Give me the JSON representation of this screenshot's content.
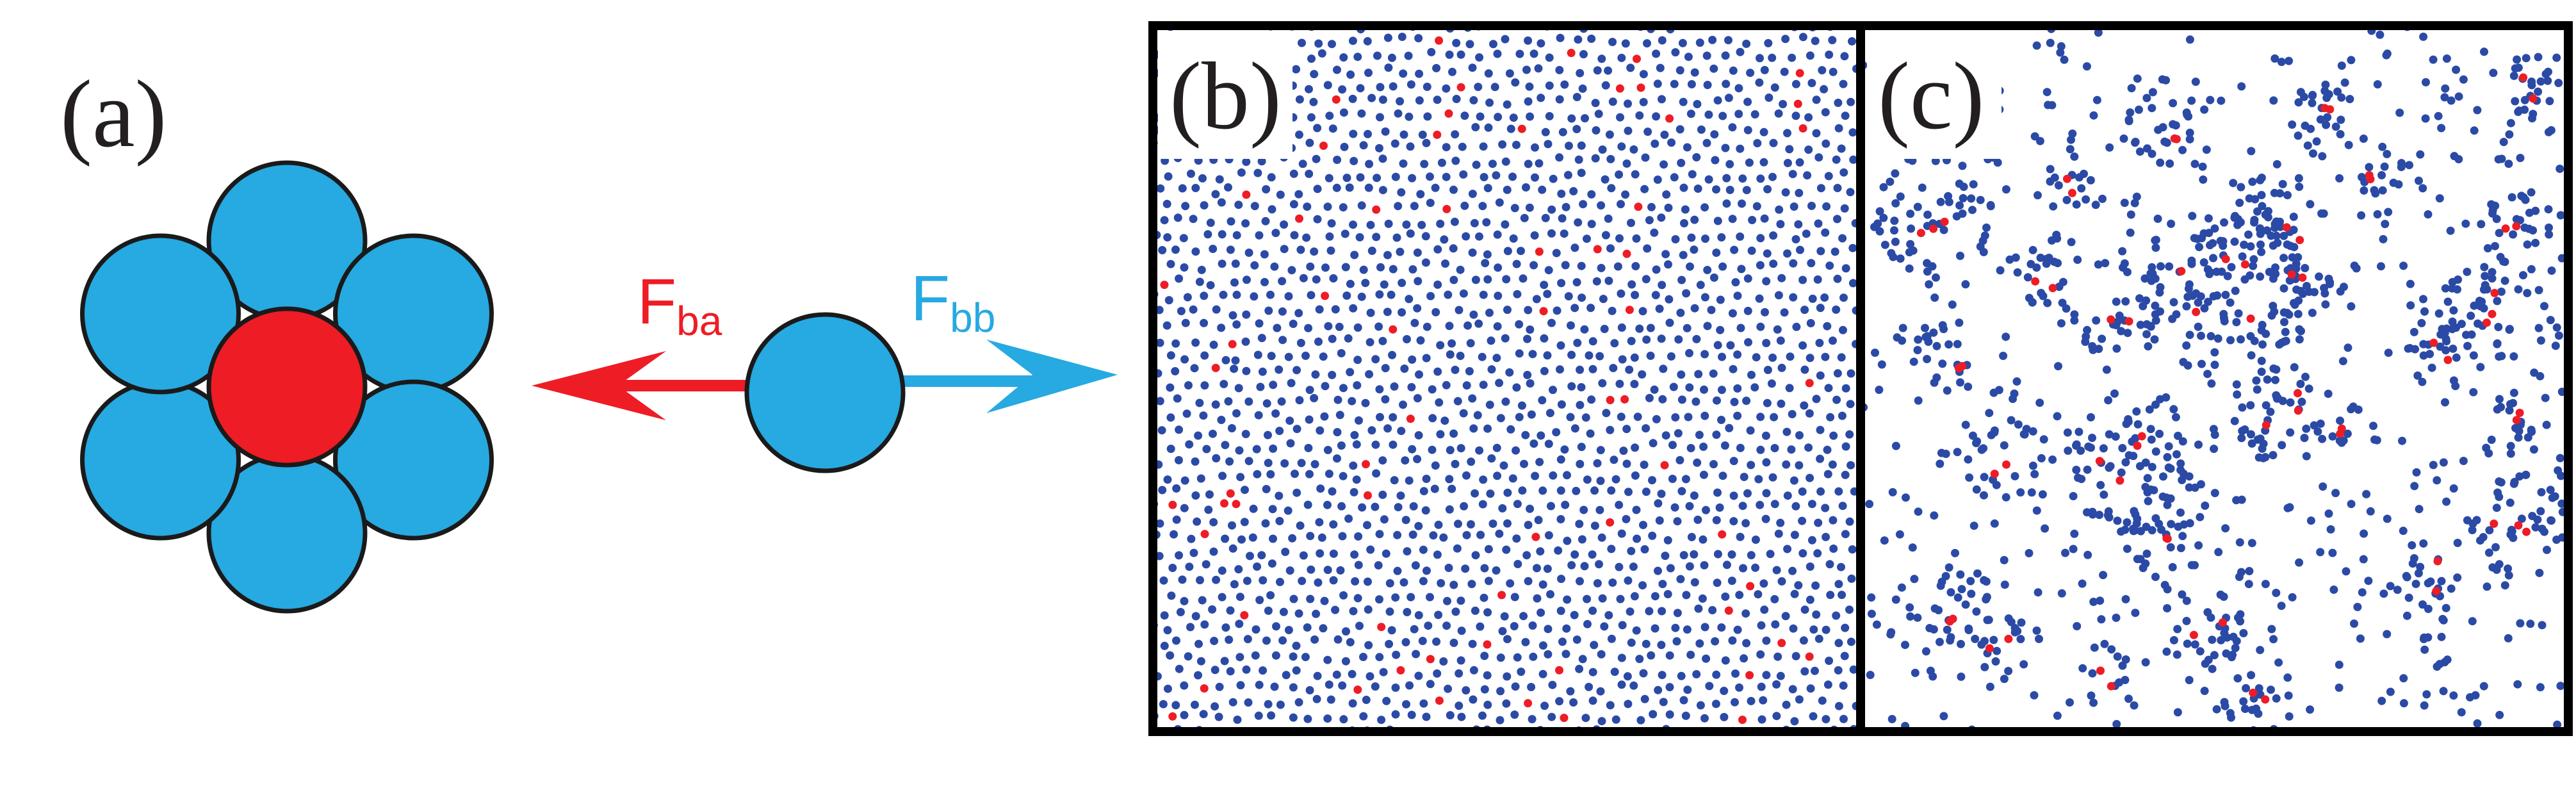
{
  "panels": {
    "a": {
      "label": "(a)"
    },
    "b": {
      "label": "(b)"
    },
    "c": {
      "label": "(c)"
    }
  },
  "cluster": {
    "center_particle": {
      "type": "a",
      "color": "#ee1c25"
    },
    "neighbor_particles": {
      "type": "b",
      "count": 6,
      "color": "#27a9e1"
    },
    "outline_color": "#1a1a1a"
  },
  "forces": {
    "fba": {
      "main": "F",
      "sub": "ba",
      "color": "#ee1c25",
      "direction": "left"
    },
    "fbb": {
      "main": "F",
      "sub": "bb",
      "color": "#27a9e1",
      "direction": "right"
    }
  },
  "snapshots": {
    "species_colors": {
      "b": "#2b4aa6",
      "a": "#ee1c25"
    },
    "b": {
      "arrangement": "homogeneous"
    },
    "c": {
      "arrangement": "clustered"
    }
  }
}
